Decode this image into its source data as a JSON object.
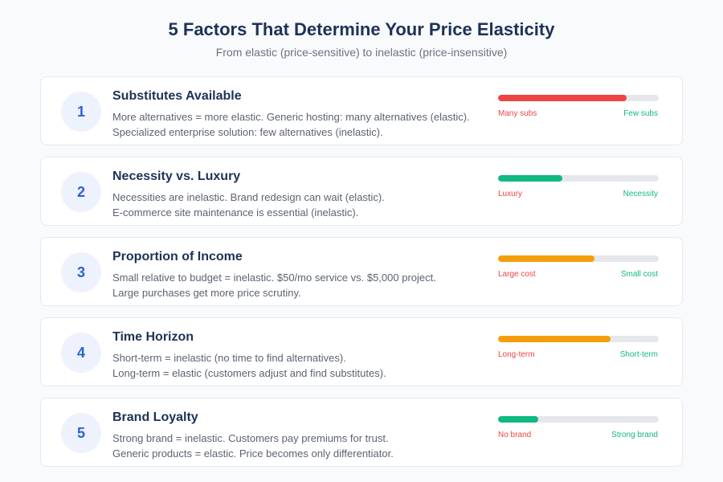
{
  "header": {
    "title": "5 Factors That Determine Your Price Elasticity",
    "subtitle": "From elastic (price-sensitive) to inelastic (price-insensitive)"
  },
  "colors": {
    "red": "#ef4444",
    "green": "#10b981",
    "orange": "#f59e0b",
    "track": "#e5e7eb",
    "number_badge_bg": "#edf2fd",
    "number_badge_text": "#2f5fd8",
    "title_text": "#1e3157"
  },
  "factors": [
    {
      "number": "1",
      "title": "Substitutes Available",
      "desc_line1": "More alternatives = more elastic. Generic hosting: many alternatives (elastic).",
      "desc_line2": "Specialized enterprise solution: few alternatives (inelastic).",
      "bar_percent": 80,
      "bar_color": "#ef4444",
      "label_left": "Many subs",
      "label_right": "Few subs"
    },
    {
      "number": "2",
      "title": "Necessity vs. Luxury",
      "desc_line1": "Necessities are inelastic. Brand redesign can wait (elastic).",
      "desc_line2": "E-commerce site maintenance is essential (inelastic).",
      "bar_percent": 40,
      "bar_color": "#10b981",
      "label_left": "Luxury",
      "label_right": "Necessity"
    },
    {
      "number": "3",
      "title": "Proportion of Income",
      "desc_line1": "Small relative to budget = inelastic. $50/mo service vs. $5,000 project.",
      "desc_line2": "Large purchases get more price scrutiny.",
      "bar_percent": 60,
      "bar_color": "#f59e0b",
      "label_left": "Large cost",
      "label_right": "Small cost"
    },
    {
      "number": "4",
      "title": "Time Horizon",
      "desc_line1": "Short-term = inelastic (no time to find alternatives).",
      "desc_line2": "Long-term = elastic (customers adjust and find substitutes).",
      "bar_percent": 70,
      "bar_color": "#f59e0b",
      "label_left": "Long-term",
      "label_right": "Short-term"
    },
    {
      "number": "5",
      "title": "Brand Loyalty",
      "desc_line1": "Strong brand = inelastic. Customers pay premiums for trust.",
      "desc_line2": "Generic products = elastic. Price becomes only differentiator.",
      "bar_percent": 25,
      "bar_color": "#10b981",
      "label_left": "No brand",
      "label_right": "Strong brand"
    }
  ]
}
